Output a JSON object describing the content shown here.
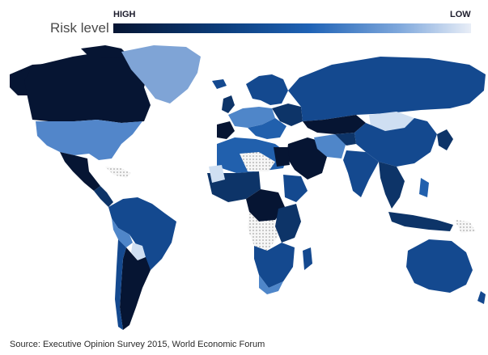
{
  "legend": {
    "title": "Risk level",
    "high_label": "HIGH",
    "low_label": "LOW",
    "gradient_colors": [
      "#061533",
      "#0b3c7a",
      "#1f63b6",
      "#7fa8dc",
      "#e9eef7"
    ]
  },
  "map": {
    "colors": {
      "very_high": "#061533",
      "high": "#0d3468",
      "medium_high": "#14498f",
      "medium": "#2160ad",
      "medium_low": "#4f86c9",
      "low": "#93b7e0",
      "very_low": "#cfdff2",
      "no_data_pattern": "#f3f3f3"
    }
  },
  "source": "Source: Executive Opinion Survey 2015, World Economic Forum"
}
